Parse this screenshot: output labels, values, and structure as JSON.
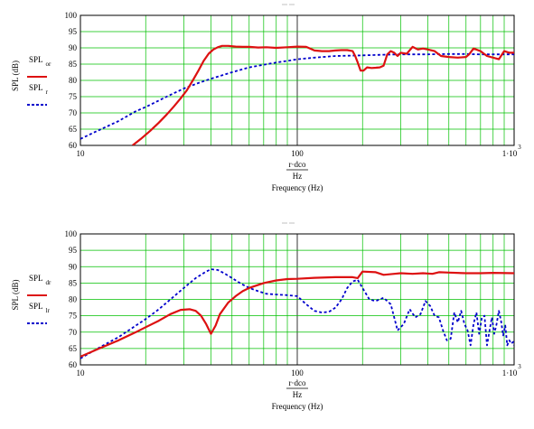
{
  "colors": {
    "grid": "#00c000",
    "axis": "#000000",
    "series_solid": "#dd1111",
    "series_dashed": "#0000cc",
    "background": "#ffffff"
  },
  "chart_data": [
    {
      "type": "line",
      "title": "",
      "x_scale": "log",
      "xlim": [
        10,
        1000
      ],
      "ylim": [
        60,
        100
      ],
      "grid": true,
      "legend_position": "left",
      "x_tick_labels": [
        "10",
        "100",
        "1·10",
        "3"
      ],
      "y_tick_labels": [
        "60",
        "65",
        "70",
        "75",
        "80",
        "85",
        "90",
        "95",
        "100"
      ],
      "xlabel": {
        "top": "r·dco",
        "unit": "Hz",
        "caption": "Frequency (Hz)"
      },
      "ylabel": "SPL (dB)",
      "series": [
        {
          "name": "SPL",
          "subscript": "or",
          "style": "solid",
          "x": [
            17.4,
            19,
            21,
            23,
            25,
            27,
            29,
            31,
            33,
            35,
            37,
            39,
            41,
            43,
            45,
            48,
            52,
            56,
            60,
            66,
            72,
            80,
            90,
            100,
            110,
            120,
            130,
            140,
            150,
            160,
            170,
            180,
            185,
            190,
            196,
            202,
            210,
            220,
            230,
            240,
            250,
            260,
            270,
            280,
            290,
            300,
            320,
            340,
            360,
            380,
            400,
            430,
            460,
            500,
            550,
            600,
            620,
            650,
            700,
            750,
            800,
            850,
            900,
            950,
            1000
          ],
          "y": [
            60,
            62,
            64.5,
            67,
            69.5,
            72,
            74.5,
            77,
            80,
            83,
            86,
            88.2,
            89.5,
            90.2,
            90.6,
            90.6,
            90.4,
            90.3,
            90.3,
            90.1,
            90.2,
            90.0,
            90.2,
            90.4,
            90.3,
            89.2,
            89.0,
            89.0,
            89.2,
            89.3,
            89.3,
            89.0,
            87.5,
            85.5,
            83.0,
            83.0,
            84.0,
            83.8,
            83.9,
            84.0,
            84.5,
            88.0,
            89.0,
            88.5,
            87.5,
            88.5,
            88.2,
            90.3,
            89.5,
            89.8,
            89.5,
            89.0,
            87.5,
            87.2,
            87.0,
            87.2,
            88.0,
            89.8,
            89.0,
            87.5,
            87.0,
            86.5,
            89.0,
            88.5,
            88.5
          ]
        },
        {
          "name": "SPL",
          "subscript": "r",
          "style": "dashed",
          "x": [
            10,
            12,
            15,
            18,
            20,
            25,
            30,
            35,
            40,
            50,
            60,
            70,
            80,
            90,
            100,
            120,
            150,
            200,
            250,
            300,
            400,
            500,
            600,
            700,
            800,
            900,
            1000
          ],
          "y": [
            62,
            64.5,
            67.5,
            70.5,
            71.8,
            75,
            77.5,
            79.2,
            80.5,
            82.5,
            84.0,
            84.8,
            85.5,
            86.0,
            86.5,
            87.0,
            87.5,
            87.7,
            87.9,
            88.0,
            88.0,
            88.1,
            88.1,
            88.0,
            88.0,
            88.0,
            88.0
          ]
        }
      ]
    },
    {
      "type": "line",
      "title": "",
      "x_scale": "log",
      "xlim": [
        10,
        1000
      ],
      "ylim": [
        60,
        100
      ],
      "grid": true,
      "legend_position": "left",
      "x_tick_labels": [
        "10",
        "100",
        "1·10",
        "3"
      ],
      "y_tick_labels": [
        "60",
        "65",
        "70",
        "75",
        "80",
        "85",
        "90",
        "95",
        "100"
      ],
      "xlabel": {
        "top": "r·dco",
        "unit": "Hz",
        "caption": "Frequency (Hz)"
      },
      "ylabel": "SPL (dB)",
      "series": [
        {
          "name": "SPL",
          "subscript": "dr",
          "style": "solid",
          "x": [
            10,
            12,
            15,
            18,
            20,
            23,
            26,
            29,
            32,
            34,
            36,
            38,
            40,
            42,
            44,
            48,
            52,
            56,
            60,
            70,
            80,
            90,
            100,
            120,
            150,
            180,
            190,
            200,
            230,
            250,
            280,
            300,
            340,
            380,
            420,
            450,
            500,
            600,
            700,
            800,
            1000
          ],
          "y": [
            62.5,
            64.8,
            67.5,
            70,
            71.5,
            73.5,
            75.5,
            76.8,
            77.0,
            76.5,
            75.0,
            72.5,
            69.5,
            72.0,
            75.5,
            79.0,
            81.0,
            82.5,
            83.5,
            85.0,
            85.8,
            86.2,
            86.3,
            86.6,
            86.8,
            86.8,
            86.5,
            88.5,
            88.3,
            87.5,
            87.8,
            88.0,
            87.8,
            88.0,
            87.8,
            88.3,
            88.2,
            88.0,
            88.0,
            88.1,
            88.0
          ]
        },
        {
          "name": "SPL",
          "subscript": "lr",
          "style": "dashed",
          "x": [
            10,
            12,
            15,
            18,
            20,
            23,
            26,
            30,
            34,
            38,
            40,
            43,
            46,
            50,
            55,
            60,
            66,
            72,
            80,
            90,
            100,
            110,
            120,
            130,
            140,
            150,
            160,
            170,
            180,
            190,
            200,
            215,
            230,
            250,
            270,
            290,
            310,
            330,
            350,
            370,
            390,
            410,
            430,
            450,
            470,
            490,
            510,
            530,
            550,
            570,
            590,
            610,
            630,
            650,
            670,
            690,
            710,
            730,
            750,
            770,
            790,
            810,
            830,
            850,
            870,
            890,
            910,
            930,
            950,
            970,
            990,
            1000
          ],
          "y": [
            62,
            65,
            68.5,
            72,
            74,
            77,
            80,
            83.5,
            86.5,
            88.5,
            89.2,
            89.0,
            88.0,
            86.5,
            84.8,
            83.5,
            82.5,
            81.7,
            81.5,
            81.3,
            81.0,
            78.5,
            76.5,
            76.0,
            76.2,
            77.5,
            80.0,
            83.5,
            85.5,
            86.0,
            83.5,
            80.0,
            79.5,
            80.5,
            78.5,
            70.5,
            72.5,
            77.0,
            74.5,
            75.5,
            79.5,
            78.0,
            75.0,
            74.5,
            70.5,
            67.5,
            68.0,
            76.0,
            73.0,
            76.5,
            72.5,
            70.5,
            66.0,
            72.5,
            76.0,
            69.5,
            74.5,
            75.0,
            66.0,
            70.5,
            74.5,
            69.5,
            72.5,
            76.5,
            73.5,
            69.0,
            72.0,
            66.0,
            67.5,
            66.5,
            67.0,
            66.0
          ]
        }
      ]
    }
  ]
}
